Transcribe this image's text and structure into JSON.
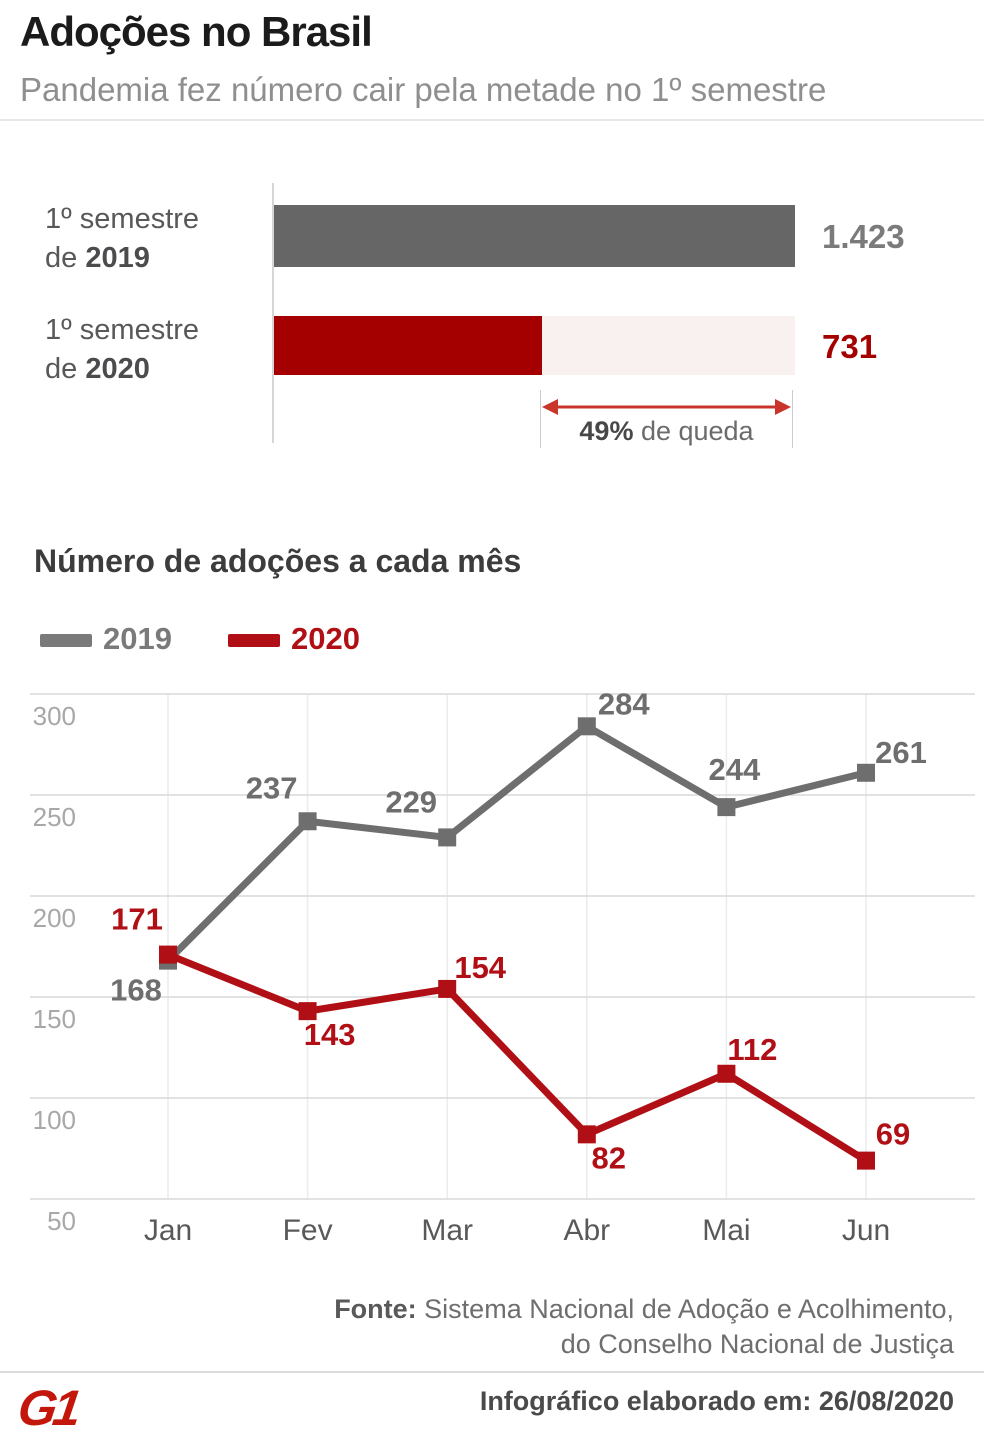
{
  "header": {
    "title": "Adoções no Brasil",
    "subtitle": "Pandemia fez número cair pela metade no 1º semestre"
  },
  "semester_chart": {
    "rows": [
      {
        "label_line1": "1º semestre",
        "label_prefix": "de ",
        "label_year": "2019",
        "value_label": "1.423"
      },
      {
        "label_line1": "1º semestre",
        "label_prefix": "de ",
        "label_year": "2020",
        "value_label": "731"
      }
    ],
    "drop": {
      "percent": "49%",
      "text": " de queda"
    }
  },
  "monthly_chart": {
    "title": "Número de adoções a cada mês",
    "legend": [
      {
        "label": "2019",
        "color": "#7a7a7a"
      },
      {
        "label": "2020",
        "color": "#b01015"
      }
    ]
  },
  "chart_data": [
    {
      "type": "bar",
      "orientation": "horizontal",
      "title": "Adoções no Brasil — 1º semestre",
      "categories": [
        "1º semestre de 2019",
        "1º semestre de 2020"
      ],
      "values": [
        1423,
        731
      ],
      "value_labels": [
        "1.423",
        "731"
      ],
      "colors": [
        "#666666",
        "#a50000"
      ],
      "track_background": "#f9f0f0",
      "annotation": "49% de queda"
    },
    {
      "type": "line",
      "title": "Número de adoções a cada mês",
      "categories": [
        "Jan",
        "Fev",
        "Mar",
        "Abr",
        "Mai",
        "Jun"
      ],
      "series": [
        {
          "name": "2019",
          "color": "#6e6e6e",
          "values": [
            168,
            237,
            229,
            284,
            244,
            261
          ]
        },
        {
          "name": "2020",
          "color": "#b01015",
          "values": [
            171,
            143,
            154,
            82,
            112,
            69
          ]
        }
      ],
      "yticks": [
        300,
        250,
        200,
        150,
        100,
        50
      ],
      "ylim": [
        50,
        300
      ],
      "grid": true,
      "legend_position": "top-left"
    }
  ],
  "footer": {
    "source_label": "Fonte:",
    "source_rest": " Sistema Nacional de Adoção e Acolhimento,",
    "source_line2": "do Conselho Nacional de Justiça",
    "made_on": "Infográfico elaborado em: 26/08/2020",
    "logo": "G1"
  },
  "colors": {
    "bar_gray": "#666666",
    "bar_red": "#a50000",
    "bar_track_pink": "#f9f0f0",
    "line_gray": "#6e6e6e",
    "line_red": "#b01015",
    "arrow_red": "#c9352b",
    "logo_red": "#c4170c"
  }
}
